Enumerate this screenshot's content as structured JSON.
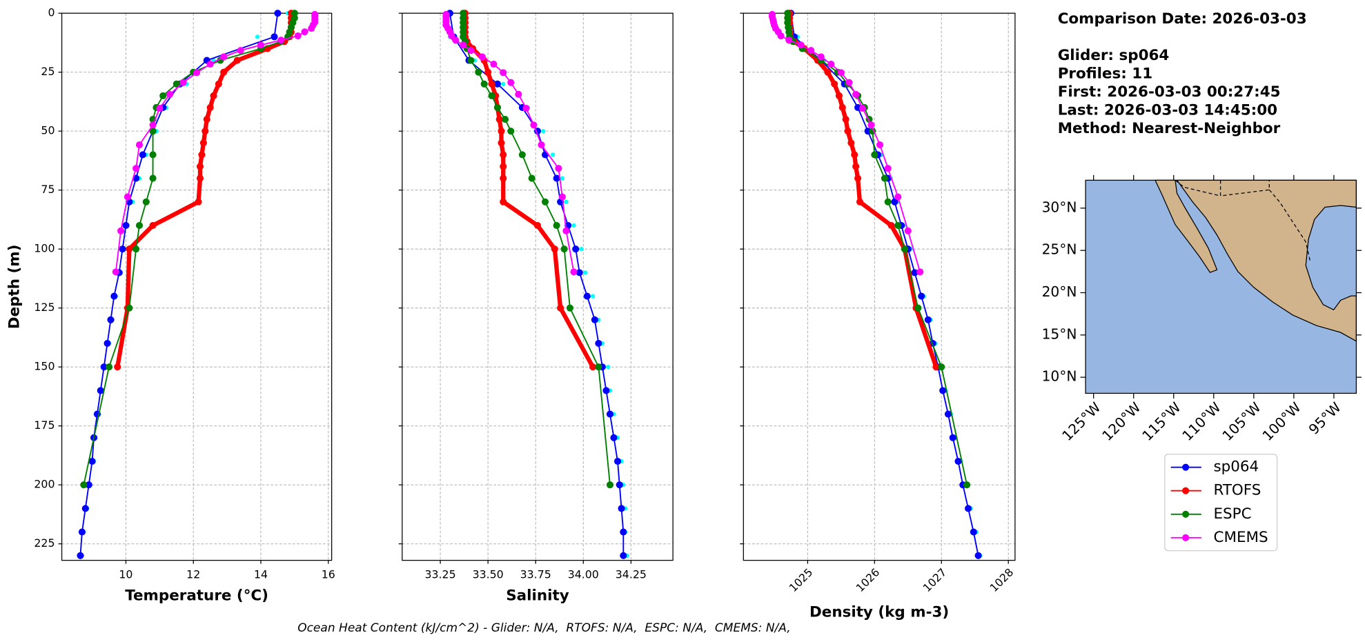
{
  "chart_data": [
    {
      "type": "line",
      "xlabel": "Temperature (°C)",
      "ylabel": "Depth (m)",
      "xlim": [
        8.1,
        16.1
      ],
      "xticks": [
        10,
        12,
        14,
        16
      ],
      "ylim": [
        0,
        232
      ],
      "y_inverted": true,
      "yticks": [
        0,
        25,
        50,
        75,
        100,
        125,
        150,
        175,
        200,
        225
      ],
      "grid": true,
      "series": [
        {
          "color": "#00ffff",
          "linestyle": "none",
          "markersize": 2.5,
          "y": [
            0,
            10,
            20,
            30,
            40,
            50,
            60,
            70,
            80,
            90,
            100,
            110,
            120,
            130,
            140,
            150,
            160,
            170,
            180,
            190,
            200,
            210,
            220,
            230
          ],
          "x": [
            14.8,
            13.9,
            12.6,
            11.8,
            11.2,
            10.9,
            10.6,
            10.4,
            10.2,
            10.05,
            9.95,
            9.85,
            9.7,
            9.6,
            9.5,
            9.4,
            9.3,
            9.2,
            9.1,
            9.05,
            8.95,
            8.85,
            8.75,
            8.7
          ]
        },
        {
          "name": "sp064",
          "color": "#0000ff",
          "linewidth": 1.5,
          "markersize": 4,
          "y": [
            0,
            10,
            20,
            30,
            40,
            50,
            60,
            70,
            80,
            90,
            100,
            110,
            120,
            130,
            140,
            150,
            160,
            170,
            180,
            190,
            200,
            210,
            220,
            230
          ],
          "x": [
            14.5,
            14.4,
            12.4,
            11.6,
            11.1,
            10.8,
            10.5,
            10.3,
            10.1,
            10.0,
            9.9,
            9.8,
            9.65,
            9.55,
            9.45,
            9.35,
            9.25,
            9.15,
            9.05,
            9.0,
            8.9,
            8.8,
            8.7,
            8.65
          ]
        },
        {
          "name": "RTOFS",
          "color": "#ff0000",
          "linewidth": 5,
          "markersize": 4,
          "y": [
            0,
            2,
            4,
            6,
            8,
            10,
            12,
            15,
            20,
            25,
            30,
            35,
            40,
            45,
            50,
            55,
            60,
            65,
            70,
            80,
            90,
            100,
            125,
            150
          ],
          "x": [
            14.9,
            14.9,
            14.9,
            14.9,
            14.9,
            14.85,
            14.7,
            14.2,
            13.3,
            12.9,
            12.75,
            12.6,
            12.5,
            12.4,
            12.35,
            12.3,
            12.25,
            12.2,
            12.2,
            12.15,
            10.8,
            10.1,
            10.05,
            9.75
          ]
        },
        {
          "name": "ESPC",
          "color": "#008000",
          "linewidth": 1.5,
          "markersize": 4,
          "y": [
            0,
            2,
            4,
            6,
            8,
            10,
            12,
            15,
            20,
            25,
            30,
            35,
            40,
            45,
            50,
            60,
            70,
            80,
            90,
            100,
            125,
            150,
            200
          ],
          "x": [
            15.0,
            15.0,
            14.95,
            14.9,
            14.85,
            14.8,
            14.6,
            14.0,
            12.8,
            12.0,
            11.5,
            11.1,
            10.9,
            10.8,
            10.8,
            10.8,
            10.8,
            10.6,
            10.4,
            10.3,
            10.1,
            9.5,
            8.75
          ]
        },
        {
          "name": "CMEMS",
          "color": "#ff00ff",
          "linewidth": 1.5,
          "markersize": 4,
          "y": [
            0.5,
            1.5,
            2.6,
            3.8,
            5,
            6.4,
            7.9,
            9.6,
            11.4,
            13.5,
            15.8,
            18.5,
            21.6,
            25.2,
            29.4,
            34.4,
            40.3,
            47.4,
            55.8,
            65.8,
            77.9,
            92.3,
            109.7
          ],
          "x": [
            15.6,
            15.6,
            15.6,
            15.6,
            15.55,
            15.5,
            15.3,
            15.1,
            14.6,
            14.0,
            13.4,
            12.9,
            12.5,
            12.1,
            11.7,
            11.3,
            11.0,
            10.8,
            10.4,
            10.3,
            10.05,
            9.85,
            9.7
          ]
        }
      ]
    },
    {
      "type": "line",
      "xlabel": "Salinity",
      "xlim": [
        33.05,
        34.47
      ],
      "xticks": [
        33.25,
        {
          "value": 33.5,
          "label": "33.50"
        },
        33.75,
        {
          "value": 34,
          "label": "34.00"
        },
        34.25
      ],
      "grid": true,
      "series": [
        {
          "color": "#00ffff",
          "linestyle": "none",
          "markersize": 2.5,
          "y": [
            0,
            10,
            20,
            30,
            40,
            50,
            60,
            70,
            80,
            90,
            100,
            110,
            120,
            130,
            140,
            150,
            160,
            170,
            180,
            190,
            200,
            210,
            220,
            230
          ],
          "x": [
            33.28,
            33.3,
            33.43,
            33.58,
            33.71,
            33.79,
            33.84,
            33.89,
            33.91,
            33.95,
            33.99,
            34.01,
            34.05,
            34.08,
            34.1,
            34.13,
            34.14,
            34.16,
            34.18,
            34.2,
            34.21,
            34.22,
            34.22,
            34.23
          ]
        },
        {
          "name": "sp064",
          "color": "#0000ff",
          "linewidth": 1.5,
          "markersize": 4,
          "y": [
            0,
            10,
            20,
            30,
            40,
            50,
            60,
            70,
            80,
            90,
            100,
            110,
            120,
            130,
            140,
            150,
            160,
            170,
            180,
            190,
            200,
            210,
            220,
            230
          ],
          "x": [
            33.3,
            33.32,
            33.4,
            33.55,
            33.68,
            33.76,
            33.8,
            33.86,
            33.88,
            33.92,
            33.96,
            33.98,
            34.02,
            34.06,
            34.08,
            34.1,
            34.12,
            34.14,
            34.16,
            34.18,
            34.19,
            34.2,
            34.21,
            34.21
          ]
        },
        {
          "name": "RTOFS",
          "color": "#ff0000",
          "linewidth": 5,
          "markersize": 4,
          "y": [
            0,
            2,
            4,
            6,
            8,
            10,
            12,
            15,
            20,
            25,
            30,
            35,
            40,
            45,
            50,
            55,
            60,
            65,
            70,
            80,
            90,
            100,
            125,
            150
          ],
          "x": [
            33.38,
            33.38,
            33.38,
            33.38,
            33.38,
            33.38,
            33.39,
            33.42,
            33.48,
            33.5,
            33.52,
            33.54,
            33.55,
            33.56,
            33.57,
            33.57,
            33.58,
            33.58,
            33.58,
            33.58,
            33.76,
            33.85,
            33.88,
            34.05
          ]
        },
        {
          "name": "ESPC",
          "color": "#008000",
          "linewidth": 1.5,
          "markersize": 4,
          "y": [
            0,
            2,
            4,
            6,
            8,
            10,
            12,
            15,
            20,
            25,
            30,
            35,
            40,
            45,
            50,
            60,
            70,
            80,
            90,
            100,
            125,
            150,
            200
          ],
          "x": [
            33.37,
            33.37,
            33.37,
            33.37,
            33.37,
            33.37,
            33.38,
            33.39,
            33.41,
            33.45,
            33.48,
            33.52,
            33.55,
            33.59,
            33.62,
            33.68,
            33.73,
            33.8,
            33.86,
            33.9,
            33.93,
            34.08,
            34.14
          ]
        },
        {
          "name": "CMEMS",
          "color": "#ff00ff",
          "linewidth": 1.5,
          "markersize": 4,
          "y": [
            0.5,
            1.5,
            2.6,
            3.8,
            5,
            6.4,
            7.9,
            9.6,
            11.4,
            13.5,
            15.8,
            18.5,
            21.6,
            25.2,
            29.4,
            34.4,
            40.3,
            47.4,
            55.8,
            65.8,
            77.9,
            92.3,
            109.7
          ],
          "x": [
            33.28,
            33.28,
            33.28,
            33.28,
            33.28,
            33.29,
            33.3,
            33.31,
            33.33,
            33.37,
            33.41,
            33.47,
            33.53,
            33.58,
            33.62,
            33.66,
            33.7,
            33.74,
            33.78,
            33.87,
            33.89,
            33.91,
            33.95
          ]
        }
      ]
    },
    {
      "type": "line",
      "xlabel": "Density (kg m-3)",
      "xlim": [
        1024.04,
        1028.1
      ],
      "xticks": [
        1025,
        1026,
        1027,
        1028
      ],
      "xtick_rotation": 45,
      "grid": true,
      "series": [
        {
          "color": "#00ffff",
          "linestyle": "none",
          "markersize": 2.5,
          "y": [
            0,
            10,
            20,
            30,
            40,
            50,
            60,
            70,
            80,
            90,
            100,
            110,
            120,
            130,
            140,
            150,
            160,
            170,
            180,
            190,
            200,
            210,
            220,
            230
          ],
          "x": [
            1024.72,
            1024.85,
            1025.25,
            1025.6,
            1025.8,
            1025.95,
            1026.1,
            1026.24,
            1026.34,
            1026.44,
            1026.54,
            1026.64,
            1026.74,
            1026.84,
            1026.91,
            1026.99,
            1027.06,
            1027.14,
            1027.21,
            1027.29,
            1027.36,
            1027.44,
            1027.52,
            1027.58
          ]
        },
        {
          "name": "sp064",
          "color": "#0000ff",
          "linewidth": 1.5,
          "markersize": 4,
          "y": [
            0,
            10,
            20,
            30,
            40,
            50,
            60,
            70,
            80,
            90,
            100,
            110,
            120,
            130,
            140,
            150,
            160,
            170,
            180,
            190,
            200,
            210,
            220,
            230
          ],
          "x": [
            1024.75,
            1024.8,
            1025.2,
            1025.55,
            1025.75,
            1025.9,
            1026.05,
            1026.2,
            1026.3,
            1026.4,
            1026.5,
            1026.6,
            1026.7,
            1026.8,
            1026.87,
            1026.95,
            1027.02,
            1027.1,
            1027.17,
            1027.25,
            1027.32,
            1027.4,
            1027.48,
            1027.55
          ]
        },
        {
          "name": "RTOFS",
          "color": "#ff0000",
          "linewidth": 5,
          "markersize": 4,
          "y": [
            0,
            2,
            4,
            6,
            8,
            10,
            12,
            15,
            20,
            25,
            30,
            35,
            40,
            45,
            50,
            55,
            60,
            65,
            70,
            80,
            90,
            100,
            125,
            150
          ],
          "x": [
            1024.73,
            1024.73,
            1024.73,
            1024.73,
            1024.73,
            1024.74,
            1024.8,
            1024.95,
            1025.15,
            1025.3,
            1025.4,
            1025.47,
            1025.52,
            1025.57,
            1025.6,
            1025.65,
            1025.7,
            1025.72,
            1025.75,
            1025.78,
            1026.25,
            1026.45,
            1026.62,
            1026.92
          ]
        },
        {
          "name": "ESPC",
          "color": "#008000",
          "linewidth": 1.5,
          "markersize": 4,
          "y": [
            0,
            2,
            4,
            6,
            8,
            10,
            12,
            15,
            20,
            25,
            30,
            35,
            40,
            45,
            50,
            60,
            70,
            80,
            90,
            100,
            125,
            150,
            200
          ],
          "x": [
            1024.7,
            1024.7,
            1024.7,
            1024.71,
            1024.72,
            1024.73,
            1024.78,
            1024.92,
            1025.2,
            1025.45,
            1025.6,
            1025.75,
            1025.85,
            1025.92,
            1025.97,
            1026.0,
            1026.15,
            1026.2,
            1026.35,
            1026.45,
            1026.65,
            1027.0,
            1027.38
          ]
        },
        {
          "name": "CMEMS",
          "color": "#ff00ff",
          "linewidth": 1.5,
          "markersize": 4,
          "y": [
            0.5,
            1.5,
            2.6,
            3.8,
            5,
            6.4,
            7.9,
            9.6,
            11.4,
            13.5,
            15.8,
            18.5,
            21.6,
            25.2,
            29.4,
            34.4,
            40.3,
            47.4,
            55.8,
            65.8,
            77.9,
            92.3,
            109.7
          ],
          "x": [
            1024.47,
            1024.47,
            1024.48,
            1024.49,
            1024.5,
            1024.52,
            1024.56,
            1024.6,
            1024.72,
            1024.9,
            1025.05,
            1025.2,
            1025.35,
            1025.5,
            1025.62,
            1025.72,
            1025.82,
            1025.95,
            1026.08,
            1026.2,
            1026.35,
            1026.5,
            1026.68
          ]
        }
      ]
    }
  ],
  "info": [
    "Comparison Date: 2026-03-03",
    "Glider: sp064",
    "Profiles: 11",
    "First: 2026-03-03 00:27:45",
    "Last: 2026-03-03 14:45:00",
    "Method: Nearest-Neighbor"
  ],
  "map": {
    "lonlim": [
      -126,
      -92.2
    ],
    "latlim": [
      8.1,
      33.3
    ],
    "lat_ticks": [
      {
        "value": 30,
        "label": "30°N"
      },
      {
        "value": 25,
        "label": "25°N"
      },
      {
        "value": 20,
        "label": "20°N"
      },
      {
        "value": 15,
        "label": "15°N"
      },
      {
        "value": 10,
        "label": "10°N"
      }
    ],
    "lon_ticks": [
      {
        "value": -125,
        "label": "125°W"
      },
      {
        "value": -120,
        "label": "120°W"
      },
      {
        "value": -115,
        "label": "115°W"
      },
      {
        "value": -110,
        "label": "110°W"
      },
      {
        "value": -105,
        "label": "105°W"
      },
      {
        "value": -100,
        "label": "100°W"
      },
      {
        "value": -95,
        "label": "95°W"
      }
    ]
  },
  "footer": "Ocean Heat Content (kJ/cm^2) - Glider: N/A,  RTOFS: N/A,  ESPC: N/A,  CMEMS: N/A,"
}
